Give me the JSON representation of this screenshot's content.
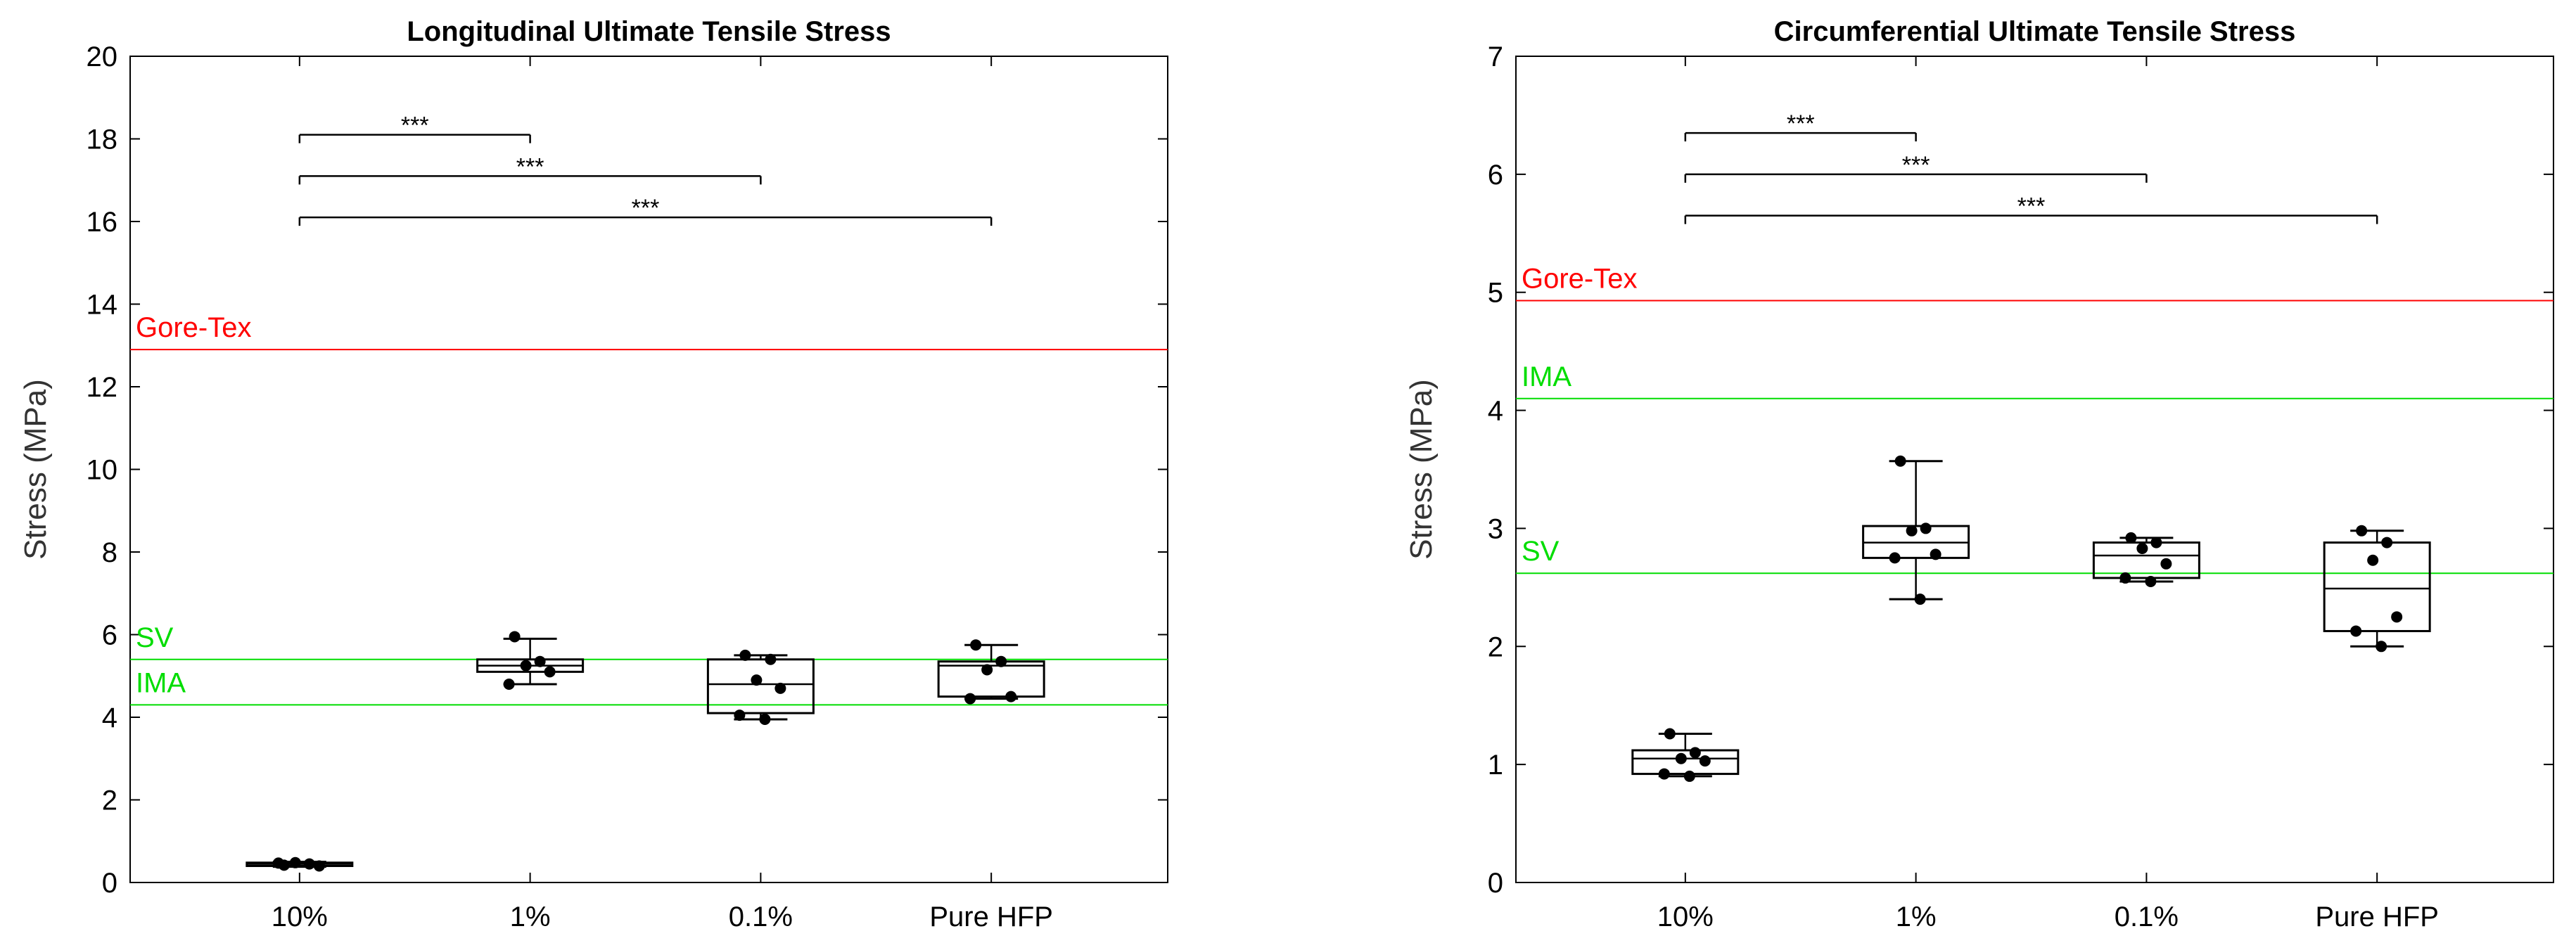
{
  "chart_data": [
    {
      "type": "box",
      "title": "Longitudinal Ultimate Tensile Stress",
      "xlabel": "",
      "ylabel": "Stress (MPa)",
      "ylim": [
        0,
        20
      ],
      "yticks": [
        0,
        2,
        4,
        6,
        8,
        10,
        12,
        14,
        16,
        18,
        20
      ],
      "ytick_labels": [
        "0",
        "2",
        "4",
        "6",
        "8",
        "10",
        "12",
        "14",
        "16",
        "18",
        "20"
      ],
      "categories": [
        "10%",
        "1%",
        "0.1%",
        "Pure HFP"
      ],
      "boxes": [
        {
          "category": "10%",
          "min": 0.38,
          "q1": 0.4,
          "median": 0.45,
          "q3": 0.48,
          "max": 0.5,
          "points": [
            0.42,
            0.45,
            0.48,
            0.4,
            0.47
          ]
        },
        {
          "category": "1%",
          "min": 4.8,
          "q1": 5.1,
          "median": 5.25,
          "q3": 5.4,
          "max": 5.9,
          "points": [
            5.95,
            5.35,
            5.25,
            5.1,
            4.8
          ]
        },
        {
          "category": "0.1%",
          "min": 3.95,
          "q1": 4.1,
          "median": 4.8,
          "q3": 5.4,
          "max": 5.5,
          "points": [
            5.5,
            5.4,
            4.9,
            4.7,
            4.05,
            3.95
          ]
        },
        {
          "category": "Pure HFP",
          "min": 4.45,
          "q1": 4.5,
          "median": 5.25,
          "q3": 5.35,
          "max": 5.75,
          "points": [
            5.75,
            5.35,
            5.15,
            4.5,
            4.45
          ]
        }
      ],
      "reference_lines": [
        {
          "label": "Gore-Tex",
          "value": 12.9,
          "color": "#ff0000"
        },
        {
          "label": "SV",
          "value": 5.4,
          "color": "#00dd00"
        },
        {
          "label": "IMA",
          "value": 4.3,
          "color": "#00dd00"
        }
      ],
      "significance": [
        {
          "from": "10%",
          "to": "1%",
          "label": "***",
          "y": 18.1
        },
        {
          "from": "10%",
          "to": "0.1%",
          "label": "***",
          "y": 17.1
        },
        {
          "from": "10%",
          "to": "Pure HFP",
          "label": "***",
          "y": 16.1
        }
      ]
    },
    {
      "type": "box",
      "title": "Circumferential Ultimate Tensile Stress",
      "xlabel": "",
      "ylabel": "Stress (MPa)",
      "ylim": [
        0,
        7
      ],
      "yticks": [
        0,
        1,
        2,
        3,
        4,
        5,
        6,
        7
      ],
      "ytick_labels": [
        "0",
        "1",
        "2",
        "3",
        "4",
        "5",
        "6",
        "7"
      ],
      "categories": [
        "10%",
        "1%",
        "0.1%",
        "Pure HFP"
      ],
      "boxes": [
        {
          "category": "10%",
          "min": 0.9,
          "q1": 0.92,
          "median": 1.05,
          "q3": 1.12,
          "max": 1.26,
          "points": [
            1.26,
            1.1,
            1.05,
            1.03,
            0.92,
            0.9
          ]
        },
        {
          "category": "1%",
          "min": 2.4,
          "q1": 2.75,
          "median": 2.88,
          "q3": 3.02,
          "max": 3.57,
          "points": [
            3.57,
            3.0,
            2.98,
            2.78,
            2.75,
            2.4
          ]
        },
        {
          "category": "0.1%",
          "min": 2.55,
          "q1": 2.58,
          "median": 2.77,
          "q3": 2.88,
          "max": 2.92,
          "points": [
            2.92,
            2.88,
            2.83,
            2.7,
            2.58,
            2.55
          ]
        },
        {
          "category": "Pure HFP",
          "min": 2.0,
          "q1": 2.13,
          "median": 2.49,
          "q3": 2.88,
          "max": 2.98,
          "points": [
            2.98,
            2.88,
            2.73,
            2.25,
            2.13,
            2.0
          ]
        }
      ],
      "reference_lines": [
        {
          "label": "Gore-Tex",
          "value": 4.93,
          "color": "#ff0000"
        },
        {
          "label": "IMA",
          "value": 4.1,
          "color": "#00dd00"
        },
        {
          "label": "SV",
          "value": 2.62,
          "color": "#00dd00"
        }
      ],
      "significance": [
        {
          "from": "10%",
          "to": "1%",
          "label": "***",
          "y": 6.35
        },
        {
          "from": "10%",
          "to": "0.1%",
          "label": "***",
          "y": 6.0
        },
        {
          "from": "10%",
          "to": "Pure HFP",
          "label": "***",
          "y": 5.65
        }
      ]
    }
  ]
}
